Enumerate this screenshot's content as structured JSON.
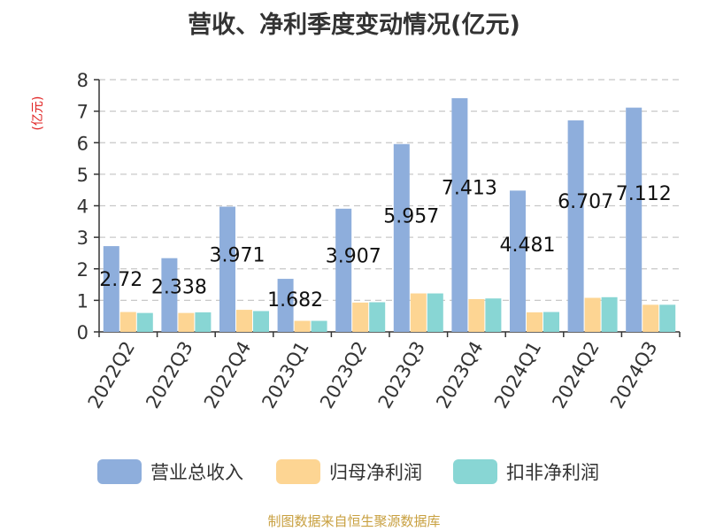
{
  "chart_data": {
    "type": "bar",
    "title": "营收、净利季度变动情况(亿元)",
    "y_unit": "(亿元)",
    "categories": [
      "2022Q2",
      "2022Q3",
      "2022Q4",
      "2023Q1",
      "2023Q2",
      "2023Q3",
      "2023Q4",
      "2024Q1",
      "2024Q2",
      "2024Q3"
    ],
    "series": [
      {
        "name": "营业总收入",
        "color": "#8eaedc",
        "values": [
          2.72,
          2.338,
          3.971,
          1.682,
          3.907,
          5.957,
          7.413,
          4.481,
          6.707,
          7.112
        ],
        "data_labels": [
          "2.72",
          "2.338",
          "3.971",
          "1.682",
          "3.907",
          "5.957",
          "7.413",
          "4.481",
          "6.707",
          "7.112"
        ]
      },
      {
        "name": "归母净利润",
        "color": "#fdd593",
        "values": [
          0.63,
          0.6,
          0.7,
          0.35,
          0.93,
          1.22,
          1.04,
          0.62,
          1.08,
          0.86
        ]
      },
      {
        "name": "扣非净利润",
        "color": "#88d6d4",
        "values": [
          0.6,
          0.62,
          0.66,
          0.35,
          0.94,
          1.22,
          1.06,
          0.63,
          1.1,
          0.86
        ]
      }
    ],
    "ylim": [
      0,
      8
    ],
    "yticks": [
      0,
      1,
      2,
      3,
      4,
      5,
      6,
      7,
      8
    ],
    "grid": true,
    "legend_position": "bottom"
  },
  "source_note": "制图数据来自恒生聚源数据库"
}
